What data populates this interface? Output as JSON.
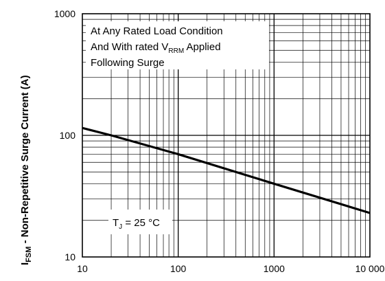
{
  "chart_data": {
    "type": "line",
    "xscale": "log",
    "yscale": "log",
    "xlim": [
      10,
      10000
    ],
    "ylim": [
      10,
      1000
    ],
    "grid": true,
    "x_ticks": [
      {
        "value": 10,
        "label": "10"
      },
      {
        "value": 100,
        "label": "100"
      },
      {
        "value": 1000,
        "label": "1000"
      },
      {
        "value": 10000,
        "label": "10 000"
      }
    ],
    "y_ticks": [
      {
        "value": 10,
        "label": "10"
      },
      {
        "value": 100,
        "label": "100"
      },
      {
        "value": 1000,
        "label": "1000"
      }
    ],
    "ylabel": {
      "main": "I",
      "sub": "FSM",
      "rest": " - Non-Repetitive Surge Current (A)"
    },
    "annotation_box": {
      "line1": "At Any Rated Load Condition",
      "line2_prefix": "And With rated V",
      "line2_sub": "RRM",
      "line2_suffix": " Applied",
      "line3": "Following Surge"
    },
    "temp_label": {
      "prefix": "T",
      "sub": "J",
      "suffix": " = 25 °C"
    },
    "series": [
      {
        "color": "#000000",
        "points": [
          {
            "x": 10,
            "y": 115
          },
          {
            "x": 20,
            "y": 100
          },
          {
            "x": 100,
            "y": 70
          },
          {
            "x": 1000,
            "y": 40
          },
          {
            "x": 10000,
            "y": 23
          }
        ]
      }
    ]
  }
}
